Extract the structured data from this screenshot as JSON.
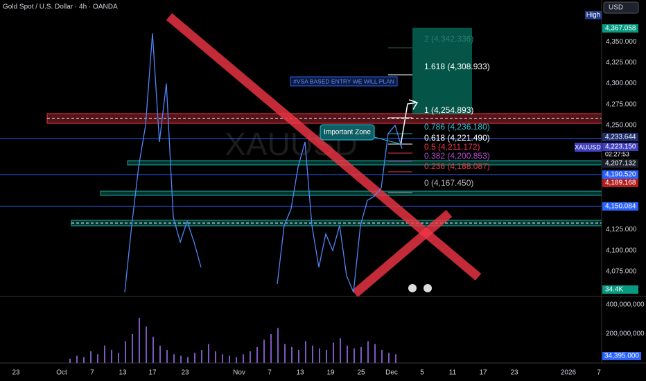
{
  "chart_data": [
    {
      "type": "line",
      "title": "Gold Spot / U.S. Dollar · 4h · OANDA",
      "series": [
        {
          "name": "XAUUSD",
          "color": "#4f86f7",
          "values": [
            4050,
            4130,
            4200,
            4250,
            4360,
            4230,
            4300,
            4140,
            4110,
            4135,
            4110,
            4080,
            null,
            null,
            null,
            null,
            null,
            null,
            null,
            null,
            null,
            null,
            4060,
            4130,
            4150,
            4200,
            4230,
            4130,
            4080,
            4120,
            4100,
            4130,
            4070,
            4050,
            4130,
            4160,
            4165,
            4175,
            4240,
            4250,
            4222
          ]
        }
      ],
      "ylim": [
        4045,
        4400
      ],
      "yticks": [
        {
          "value": 4075,
          "label": "4,075.000"
        },
        {
          "value": 4100,
          "label": "4,100.000"
        },
        {
          "value": 4125,
          "label": "4,125.000"
        },
        {
          "value": 4250,
          "label": "4,250.000"
        },
        {
          "value": 4275,
          "label": "4,275.000"
        },
        {
          "value": 4300,
          "label": "4,300.000"
        },
        {
          "value": 4325,
          "label": "4,325.000"
        },
        {
          "value": 4350,
          "label": "4,350.000"
        }
      ],
      "grid": false
    },
    {
      "type": "bar",
      "color": "#7e57c2",
      "values": [
        30000000,
        50000000,
        40000000,
        80000000,
        60000000,
        120000000,
        90000000,
        70000000,
        150000000,
        200000000,
        310000000,
        250000000,
        180000000,
        120000000,
        90000000,
        60000000,
        50000000,
        40000000,
        70000000,
        90000000,
        130000000,
        80000000,
        60000000,
        50000000,
        40000000,
        60000000,
        80000000,
        110000000,
        160000000,
        200000000,
        240000000,
        130000000,
        110000000,
        90000000,
        150000000,
        120000000,
        100000000,
        90000000,
        140000000,
        170000000,
        120000000,
        100000000,
        110000000,
        150000000,
        130000000,
        90000000,
        70000000,
        60000000
      ],
      "ylim": [
        0,
        447000000
      ],
      "yticks": [
        {
          "value": 200000000,
          "label": "200,000,000"
        },
        {
          "value": 400000000,
          "label": "400,000,000"
        }
      ],
      "grid": false
    }
  ],
  "time_axis": [
    "23",
    "Oct",
    "7",
    "13",
    "17",
    "23",
    "Nov",
    "7",
    "13",
    "19",
    "25",
    "Dec",
    "5",
    "11",
    "17",
    "23",
    "2026",
    "7"
  ],
  "header": {
    "currency": "USD",
    "high_label": "High",
    "symbol_tag": "XAUUSD",
    "countdown": "02:27:53"
  },
  "price_badges": [
    "4,367.058",
    "4,233.644",
    "4,223.150",
    "4,207.132",
    "4,190.520",
    "4,189.168",
    "4,150.084",
    "34.4K"
  ],
  "volume_badge": "34,395.000",
  "fib_levels": [
    "2 (4,342.336)",
    "1.618 (4,308.933)",
    "1 (4,254.893)",
    "0.786 (4,236.180)",
    "0.618 (4,221.490)",
    "0.5 (4,211.172)",
    "0.382 (4,200.853)",
    "0.236 (4,188.087)",
    "0 (4,167.450)"
  ],
  "notes": [
    "#VSA BASED ENTRY WE WILL PLAN",
    "Important Zone"
  ],
  "watermark": "XAUUSD"
}
